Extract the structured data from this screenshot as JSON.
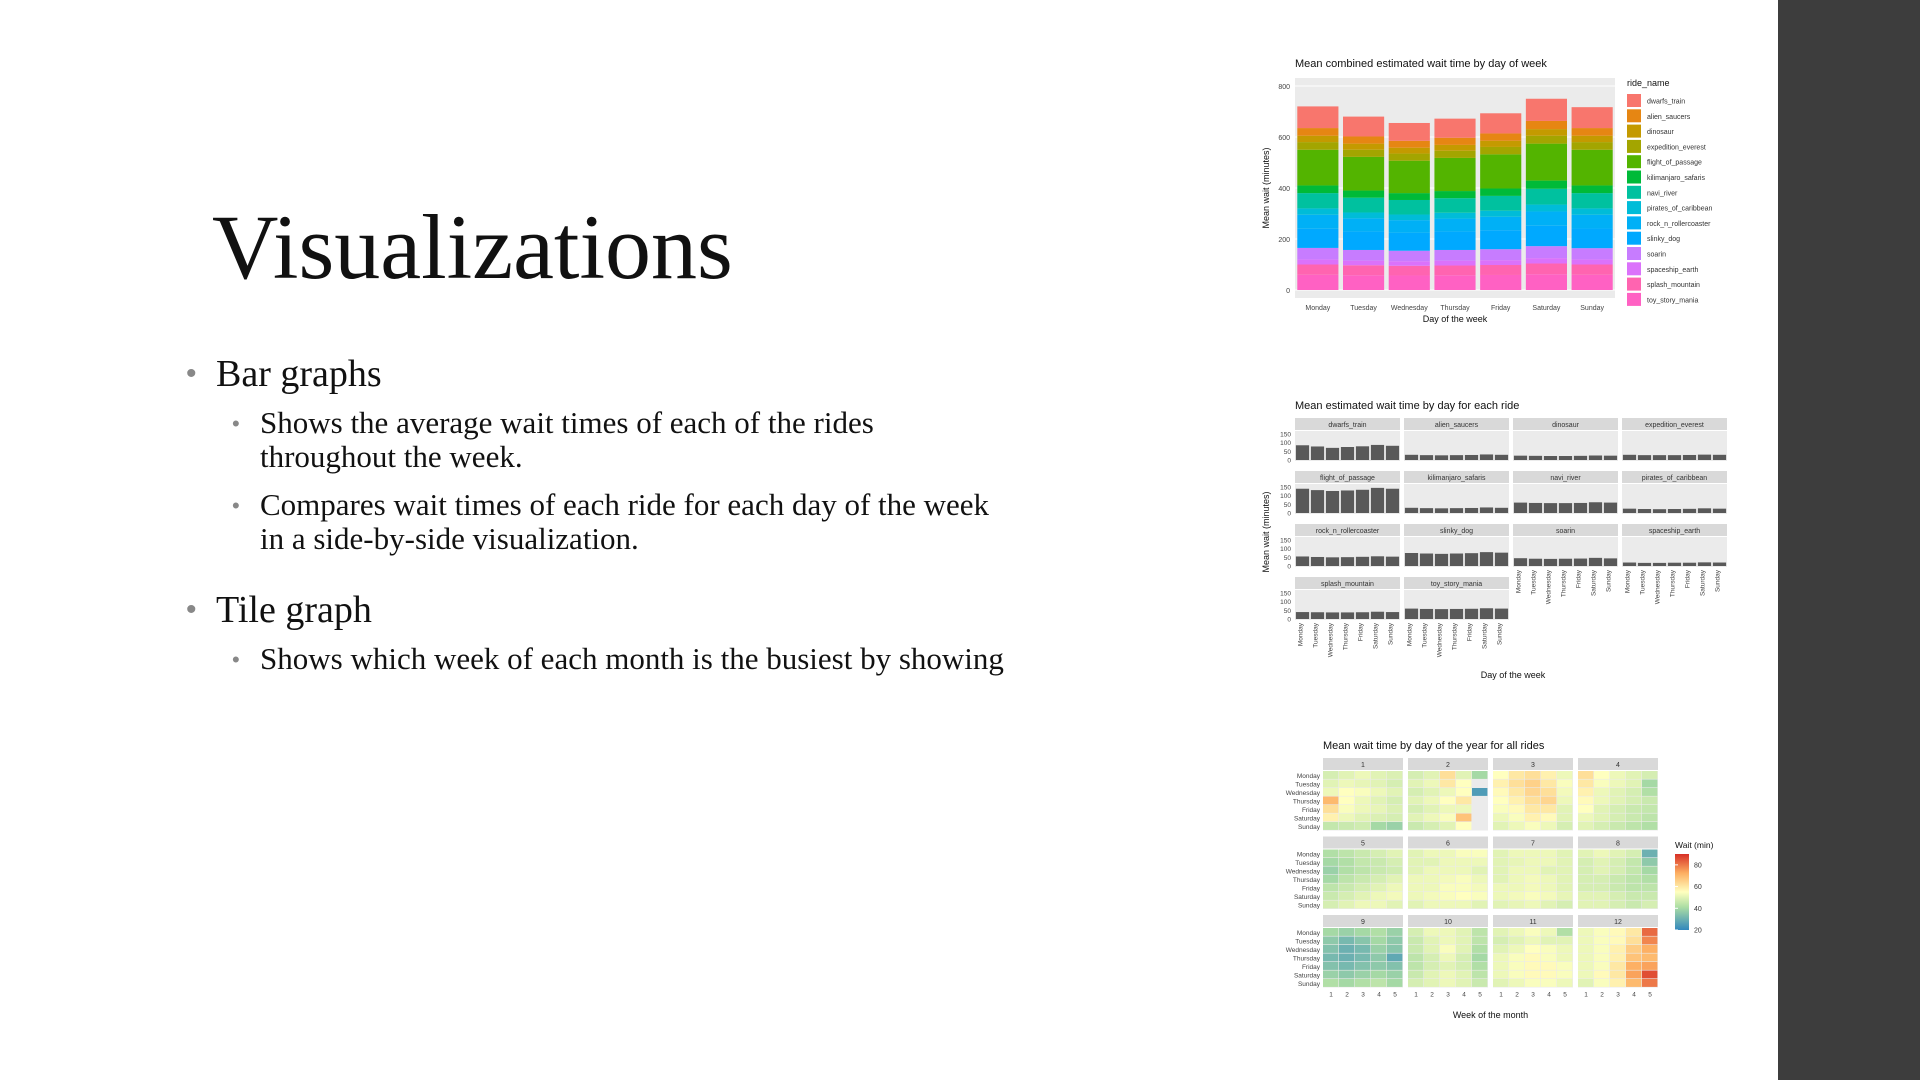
{
  "slide": {
    "title": "Visualizations",
    "bullets": [
      {
        "text": "Bar graphs",
        "sub": [
          "Shows the average wait times of each of the rides",
          "throughout the week.",
          "Compares wait times of each ride for each day of the week",
          "in a side-by-side visualization."
        ]
      },
      {
        "text": "Tile graph",
        "sub": [
          "Shows which week of each month is the busiest by showing"
        ]
      }
    ]
  },
  "colors": {
    "facet_strip": "#d9d9d9",
    "panel_bg": "#ebebeb",
    "facet_bar": "#595959",
    "sidebar": "#3d3d3d"
  },
  "chart_data": [
    {
      "type": "bar",
      "stacked": true,
      "title": "Mean combined estimated wait time by day of week",
      "xlabel": "Day of the week",
      "ylabel": "Mean wait (minutes)",
      "ylim": [
        0,
        800
      ],
      "yticks": [
        "0",
        "200",
        "400",
        "600",
        "800"
      ],
      "legend_title": "ride_name",
      "legend_position": "right",
      "categories": [
        "Monday",
        "Tuesday",
        "Wednesday",
        "Thursday",
        "Friday",
        "Saturday",
        "Sunday"
      ],
      "series": [
        {
          "name": "toy_story_mania",
          "color": "#FF61C3",
          "values": [
            60,
            58,
            57,
            58,
            59,
            62,
            60
          ]
        },
        {
          "name": "splash_mountain",
          "color": "#FF64B0",
          "values": [
            40,
            39,
            38,
            38,
            39,
            42,
            40
          ]
        },
        {
          "name": "spaceship_earth",
          "color": "#DB72FB",
          "values": [
            20,
            18,
            18,
            19,
            19,
            21,
            20
          ]
        },
        {
          "name": "soarin",
          "color": "#C77CFF",
          "values": [
            45,
            42,
            41,
            42,
            43,
            47,
            44
          ]
        },
        {
          "name": "slinky_dog",
          "color": "#00A9FF",
          "values": [
            75,
            72,
            70,
            72,
            74,
            80,
            77
          ]
        },
        {
          "name": "rock_n_rollercoaster",
          "color": "#00B0F6",
          "values": [
            55,
            52,
            50,
            51,
            53,
            56,
            54
          ]
        },
        {
          "name": "pirates_of_caribbean",
          "color": "#00BCD8",
          "values": [
            25,
            23,
            22,
            23,
            24,
            27,
            25
          ]
        },
        {
          "name": "navi_river",
          "color": "#00C19F",
          "values": [
            60,
            58,
            57,
            57,
            58,
            62,
            60
          ]
        },
        {
          "name": "kilimanjaro_safaris",
          "color": "#00BA38",
          "values": [
            30,
            28,
            27,
            28,
            29,
            32,
            30
          ]
        },
        {
          "name": "flight_of_passage",
          "color": "#53B400",
          "values": [
            140,
            132,
            127,
            130,
            134,
            145,
            140
          ]
        },
        {
          "name": "expedition_everest",
          "color": "#A3A500",
          "values": [
            30,
            28,
            28,
            28,
            29,
            31,
            30
          ]
        },
        {
          "name": "dinosaur",
          "color": "#C49A00",
          "values": [
            25,
            24,
            23,
            23,
            24,
            26,
            25
          ]
        },
        {
          "name": "alien_saucers",
          "color": "#E68613",
          "values": [
            30,
            28,
            27,
            28,
            29,
            32,
            30
          ]
        },
        {
          "name": "dwarfs_train",
          "color": "#F8766D",
          "values": [
            85,
            78,
            70,
            75,
            79,
            87,
            82
          ]
        }
      ]
    },
    {
      "type": "bar",
      "faceted": true,
      "title": "Mean estimated wait time by day for each ride",
      "xlabel": "Day of the week",
      "ylabel": "Mean wait (minutes)",
      "ylim": [
        0,
        150
      ],
      "yticks": [
        "0",
        "50",
        "100",
        "150"
      ],
      "categories": [
        "Monday",
        "Tuesday",
        "Wednesday",
        "Thursday",
        "Friday",
        "Saturday",
        "Sunday"
      ],
      "facets": [
        {
          "name": "dwarfs_train",
          "values": [
            85,
            78,
            70,
            75,
            79,
            87,
            82
          ]
        },
        {
          "name": "alien_saucers",
          "values": [
            30,
            28,
            27,
            28,
            29,
            32,
            30
          ]
        },
        {
          "name": "dinosaur",
          "values": [
            25,
            24,
            23,
            23,
            24,
            26,
            25
          ]
        },
        {
          "name": "expedition_everest",
          "values": [
            30,
            28,
            28,
            28,
            29,
            31,
            30
          ]
        },
        {
          "name": "flight_of_passage",
          "values": [
            140,
            132,
            127,
            130,
            134,
            145,
            140
          ]
        },
        {
          "name": "kilimanjaro_safaris",
          "values": [
            30,
            28,
            27,
            28,
            29,
            32,
            30
          ]
        },
        {
          "name": "navi_river",
          "values": [
            60,
            58,
            57,
            57,
            58,
            62,
            60
          ]
        },
        {
          "name": "pirates_of_caribbean",
          "values": [
            25,
            23,
            22,
            23,
            24,
            27,
            25
          ]
        },
        {
          "name": "rock_n_rollercoaster",
          "values": [
            55,
            52,
            50,
            51,
            53,
            56,
            54
          ]
        },
        {
          "name": "slinky_dog",
          "values": [
            75,
            72,
            70,
            72,
            74,
            80,
            77
          ]
        },
        {
          "name": "soarin",
          "values": [
            45,
            42,
            41,
            42,
            43,
            47,
            44
          ]
        },
        {
          "name": "spaceship_earth",
          "values": [
            20,
            18,
            18,
            19,
            19,
            21,
            20
          ]
        },
        {
          "name": "splash_mountain",
          "values": [
            40,
            39,
            38,
            38,
            39,
            42,
            40
          ]
        },
        {
          "name": "toy_story_mania",
          "values": [
            60,
            58,
            57,
            58,
            59,
            62,
            60
          ]
        }
      ]
    },
    {
      "type": "heatmap",
      "title": "Mean wait time by day of the year for all rides",
      "xlabel": "Week of the month",
      "ylabel": "",
      "rows": [
        "Monday",
        "Tuesday",
        "Wednesday",
        "Thursday",
        "Friday",
        "Saturday",
        "Sunday"
      ],
      "weeks": [
        "1",
        "2",
        "3",
        "4",
        "5"
      ],
      "legend_title": "Wait (min)",
      "legend_ticks": [
        "20",
        "40",
        "60",
        "80"
      ],
      "scale": [
        20,
        90
      ],
      "legend_position": "right",
      "months": [
        {
          "name": "1",
          "values": [
            [
              48,
              50,
              52,
              50,
              49
            ],
            [
              50,
              52,
              51,
              50,
              48
            ],
            [
              52,
              55,
              54,
              52,
              50
            ],
            [
              70,
              55,
              52,
              50,
              48
            ],
            [
              62,
              54,
              52,
              51,
              49
            ],
            [
              58,
              52,
              50,
              49,
              48
            ],
            [
              45,
              46,
              47,
              40,
              38
            ]
          ]
        },
        {
          "name": "2",
          "values": [
            [
              48,
              50,
              62,
              50,
              40
            ],
            [
              50,
              52,
              60,
              55,
              null
            ],
            [
              48,
              50,
              52,
              55,
              25
            ],
            [
              50,
              52,
              55,
              60,
              null
            ],
            [
              48,
              50,
              52,
              52,
              null
            ],
            [
              50,
              52,
              54,
              68,
              null
            ],
            [
              46,
              48,
              50,
              55,
              null
            ]
          ]
        },
        {
          "name": "3",
          "values": [
            [
              55,
              60,
              62,
              58,
              52
            ],
            [
              58,
              62,
              65,
              60,
              54
            ],
            [
              56,
              60,
              64,
              62,
              53
            ],
            [
              55,
              58,
              62,
              64,
              52
            ],
            [
              54,
              56,
              60,
              60,
              50
            ],
            [
              52,
              54,
              58,
              56,
              50
            ],
            [
              50,
              52,
              54,
              52,
              48
            ]
          ]
        },
        {
          "name": "4",
          "values": [
            [
              62,
              55,
              52,
              50,
              48
            ],
            [
              60,
              54,
              52,
              50,
              40
            ],
            [
              58,
              52,
              50,
              48,
              42
            ],
            [
              56,
              52,
              50,
              48,
              46
            ],
            [
              55,
              50,
              48,
              46,
              45
            ],
            [
              52,
              50,
              48,
              46,
              44
            ],
            [
              50,
              48,
              46,
              44,
              42
            ]
          ]
        },
        {
          "name": "5",
          "values": [
            [
              42,
              44,
              46,
              48,
              50
            ],
            [
              40,
              42,
              45,
              46,
              48
            ],
            [
              38,
              42,
              44,
              46,
              47
            ],
            [
              40,
              44,
              46,
              48,
              50
            ],
            [
              44,
              46,
              48,
              50,
              52
            ],
            [
              46,
              48,
              50,
              52,
              53
            ],
            [
              48,
              50,
              52,
              52,
              50
            ]
          ]
        },
        {
          "name": "6",
          "values": [
            [
              50,
              52,
              52,
              54,
              54
            ],
            [
              50,
              50,
              52,
              52,
              52
            ],
            [
              50,
              52,
              52,
              52,
              50
            ],
            [
              52,
              52,
              53,
              54,
              52
            ],
            [
              52,
              52,
              54,
              54,
              53
            ],
            [
              52,
              53,
              54,
              55,
              54
            ],
            [
              50,
              52,
              52,
              52,
              50
            ]
          ]
        },
        {
          "name": "7",
          "values": [
            [
              50,
              52,
              52,
              52,
              50
            ],
            [
              50,
              51,
              52,
              52,
              50
            ],
            [
              50,
              52,
              52,
              50,
              50
            ],
            [
              50,
              52,
              53,
              52,
              50
            ],
            [
              52,
              52,
              53,
              52,
              50
            ],
            [
              52,
              53,
              54,
              53,
              51
            ],
            [
              50,
              51,
              52,
              50,
              48
            ]
          ]
        },
        {
          "name": "8",
          "values": [
            [
              50,
              52,
              50,
              48,
              30
            ],
            [
              48,
              50,
              48,
              45,
              36
            ],
            [
              48,
              50,
              48,
              45,
              40
            ],
            [
              48,
              48,
              46,
              44,
              42
            ],
            [
              48,
              48,
              46,
              44,
              44
            ],
            [
              50,
              50,
              48,
              46,
              46
            ],
            [
              50,
              50,
              48,
              46,
              48
            ]
          ]
        },
        {
          "name": "9",
          "values": [
            [
              40,
              38,
              40,
              42,
              38
            ],
            [
              36,
              32,
              35,
              40,
              36
            ],
            [
              34,
              30,
              32,
              38,
              35
            ],
            [
              32,
              30,
              32,
              36,
              28
            ],
            [
              34,
              32,
              34,
              36,
              34
            ],
            [
              38,
              36,
              38,
              40,
              38
            ],
            [
              42,
              40,
              42,
              44,
              40
            ]
          ]
        },
        {
          "name": "10",
          "values": [
            [
              48,
              52,
              52,
              50,
              44
            ],
            [
              46,
              50,
              52,
              50,
              44
            ],
            [
              46,
              50,
              54,
              50,
              42
            ],
            [
              44,
              48,
              52,
              48,
              40
            ],
            [
              44,
              48,
              50,
              48,
              42
            ],
            [
              46,
              50,
              52,
              50,
              44
            ],
            [
              48,
              50,
              52,
              50,
              46
            ]
          ]
        },
        {
          "name": "11",
          "values": [
            [
              50,
              52,
              54,
              52,
              42
            ],
            [
              48,
              50,
              52,
              50,
              50
            ],
            [
              50,
              52,
              55,
              54,
              52
            ],
            [
              52,
              54,
              56,
              54,
              52
            ],
            [
              52,
              54,
              56,
              56,
              54
            ],
            [
              52,
              54,
              56,
              56,
              54
            ],
            [
              50,
              52,
              54,
              54,
              52
            ]
          ]
        },
        {
          "name": "12",
          "values": [
            [
              52,
              54,
              56,
              60,
              82
            ],
            [
              52,
              54,
              56,
              62,
              78
            ],
            [
              52,
              54,
              58,
              66,
              72
            ],
            [
              52,
              54,
              58,
              68,
              70
            ],
            [
              52,
              54,
              60,
              72,
              74
            ],
            [
              52,
              56,
              60,
              74,
              86
            ],
            [
              50,
              54,
              58,
              70,
              80
            ]
          ]
        }
      ]
    }
  ]
}
